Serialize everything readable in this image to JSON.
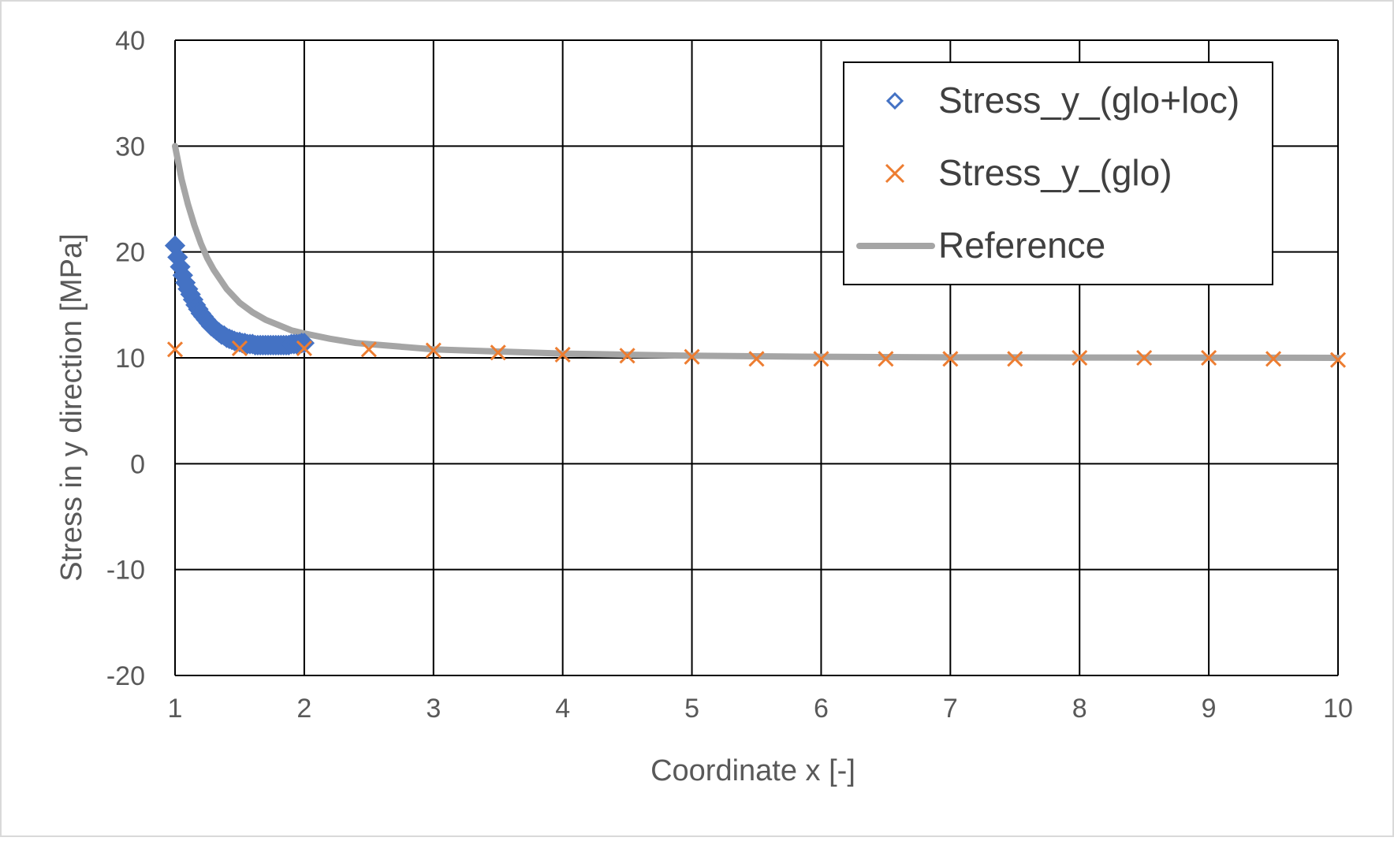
{
  "chart_data": {
    "type": "scatter",
    "title": "",
    "xlabel": "Coordinate x [-]",
    "ylabel": "Stress in y direction [MPa]",
    "xlim": [
      1,
      10
    ],
    "ylim": [
      -20,
      40
    ],
    "x_ticks": [
      1,
      2,
      3,
      4,
      5,
      6,
      7,
      8,
      9,
      10
    ],
    "y_ticks": [
      -20,
      -10,
      0,
      10,
      20,
      30,
      40
    ],
    "x_tick_labels": [
      "1",
      "2",
      "3",
      "4",
      "5",
      "6",
      "7",
      "8",
      "9",
      "10"
    ],
    "y_tick_labels": [
      "-20",
      "-10",
      "0",
      "10",
      "20",
      "30",
      "40"
    ],
    "grid": true,
    "legend_position": "top-right",
    "series": [
      {
        "name": "Stress_y_(glo+loc)",
        "marker": "diamond",
        "color": "#4472C4",
        "x": [
          1.0,
          1.02,
          1.04,
          1.06,
          1.08,
          1.1,
          1.12,
          1.14,
          1.16,
          1.18,
          1.2,
          1.22,
          1.24,
          1.26,
          1.28,
          1.3,
          1.32,
          1.34,
          1.36,
          1.38,
          1.4,
          1.42,
          1.44,
          1.46,
          1.48,
          1.5,
          1.52,
          1.54,
          1.56,
          1.58,
          1.6,
          1.62,
          1.64,
          1.66,
          1.68,
          1.7,
          1.72,
          1.74,
          1.76,
          1.78,
          1.8,
          1.82,
          1.84,
          1.86,
          1.88,
          1.9,
          1.92,
          1.94,
          1.96,
          1.98,
          2.0
        ],
        "y": [
          20.6,
          19.5,
          18.6,
          17.8,
          17.1,
          16.5,
          16.0,
          15.5,
          15.0,
          14.6,
          14.2,
          13.9,
          13.6,
          13.3,
          13.0,
          12.8,
          12.6,
          12.4,
          12.2,
          12.1,
          11.9,
          11.8,
          11.7,
          11.6,
          11.5,
          11.5,
          11.4,
          11.4,
          11.3,
          11.3,
          11.3,
          11.2,
          11.2,
          11.2,
          11.2,
          11.2,
          11.2,
          11.2,
          11.2,
          11.2,
          11.2,
          11.2,
          11.2,
          11.2,
          11.2,
          11.3,
          11.3,
          11.3,
          11.3,
          11.4,
          11.4
        ]
      },
      {
        "name": "Stress_y_(glo)",
        "marker": "x",
        "color": "#ED7D31",
        "x": [
          1,
          1.5,
          2,
          2.5,
          3,
          3.5,
          4,
          4.5,
          5,
          5.5,
          6,
          6.5,
          7,
          7.5,
          8,
          8.5,
          9,
          9.5,
          10
        ],
        "y": [
          10.8,
          10.9,
          10.9,
          10.8,
          10.7,
          10.5,
          10.3,
          10.2,
          10.1,
          9.9,
          9.9,
          9.9,
          9.9,
          9.9,
          10.0,
          10.0,
          10.0,
          9.9,
          9.8
        ]
      },
      {
        "name": "Reference",
        "marker": "line",
        "color": "#A5A5A5",
        "x": [
          1.0,
          1.05,
          1.1,
          1.15,
          1.2,
          1.25,
          1.3,
          1.4,
          1.5,
          1.6,
          1.7,
          1.8,
          1.9,
          2.0,
          2.2,
          2.4,
          2.6,
          2.8,
          3.0,
          3.5,
          4.0,
          4.5,
          5.0,
          6.0,
          7.0,
          8.0,
          9.0,
          10.0
        ],
        "y": [
          30.0,
          26.9,
          24.5,
          22.5,
          20.8,
          19.4,
          18.3,
          16.5,
          15.2,
          14.3,
          13.6,
          13.1,
          12.6,
          12.3,
          11.8,
          11.4,
          11.2,
          11.0,
          10.8,
          10.6,
          10.4,
          10.3,
          10.2,
          10.1,
          10.05,
          10.03,
          10.02,
          10.0
        ]
      }
    ]
  }
}
